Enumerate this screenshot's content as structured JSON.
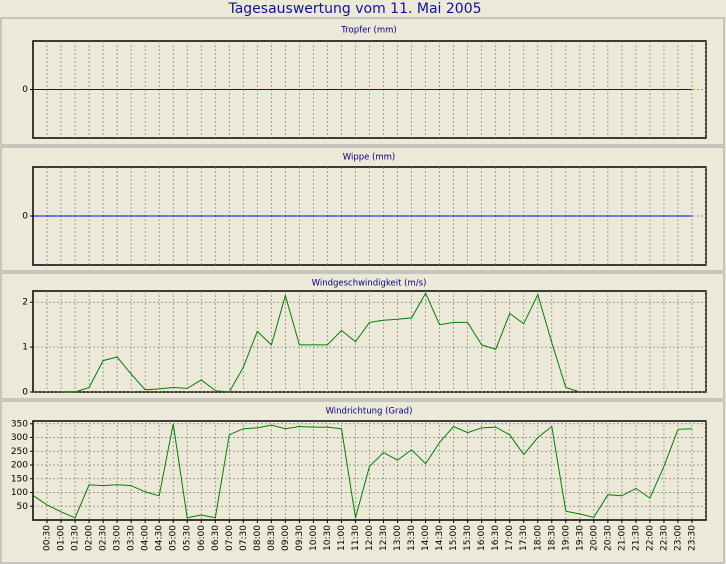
{
  "title": "Tagesauswertung vom 11. Mai 2005",
  "chart_data": [
    {
      "type": "line",
      "title": "Tropfer (mm)",
      "ylim": [
        -1,
        1
      ],
      "yticks": [
        0
      ],
      "grid": true,
      "color": "#0000ff",
      "values": [
        0,
        0,
        0,
        0,
        0,
        0,
        0,
        0,
        0,
        0,
        0,
        0,
        0,
        0,
        0,
        0,
        0,
        0,
        0,
        0,
        0,
        0,
        0,
        0,
        0,
        0,
        0,
        0,
        0,
        0,
        0,
        0,
        0,
        0,
        0,
        0,
        0,
        0,
        0,
        0,
        0,
        0,
        0,
        0,
        0,
        0,
        0,
        0
      ]
    },
    {
      "type": "line",
      "title": "Wippe (mm)",
      "ylim": [
        -1,
        1
      ],
      "yticks": [
        0
      ],
      "grid": true,
      "color": "#0000ff",
      "values": [
        0,
        0,
        0,
        0,
        0,
        0,
        0,
        0,
        0,
        0,
        0,
        0,
        0,
        0,
        0,
        0,
        0,
        0,
        0,
        0,
        0,
        0,
        0,
        0,
        0,
        0,
        0,
        0,
        0,
        0,
        0,
        0,
        0,
        0,
        0,
        0,
        0,
        0,
        0,
        0,
        0,
        0,
        0,
        0,
        0,
        0,
        0,
        0
      ]
    },
    {
      "type": "line",
      "title": "Windgeschwindigkeit (m/s)",
      "ylim": [
        0,
        2.25
      ],
      "yticks": [
        0,
        1,
        2
      ],
      "grid": true,
      "color": "#008000",
      "values": [
        null,
        null,
        0,
        0,
        0.1,
        0.7,
        0.78,
        0.4,
        0.05,
        0.07,
        0.1,
        0.08,
        0.27,
        0.03,
        0,
        0.55,
        1.35,
        1.05,
        2.15,
        1.05,
        1.05,
        1.05,
        1.37,
        1.12,
        1.55,
        1.6,
        1.62,
        1.65,
        2.2,
        1.5,
        1.55,
        1.55,
        1.05,
        0.95,
        1.75,
        1.52,
        2.17,
        1.1,
        0.1,
        0,
        null,
        null,
        null,
        null,
        null,
        null,
        null,
        null
      ]
    },
    {
      "type": "line",
      "title": "Windrichtung (Grad)",
      "ylim": [
        0,
        360
      ],
      "yticks": [
        50,
        100,
        150,
        200,
        250,
        300,
        350
      ],
      "grid": true,
      "color": "#008000",
      "categories": [
        null,
        "00:30",
        "01:00",
        "01:30",
        "02:00",
        "02:30",
        "03:00",
        "03:30",
        "04:00",
        "04:30",
        "05:00",
        "05:30",
        "06:00",
        "06:30",
        "07:00",
        "07:30",
        "08:00",
        "08:30",
        "09:00",
        "09:30",
        "10:00",
        "10:30",
        "11:00",
        "11:30",
        "12:00",
        "12:30",
        "13:00",
        "13:30",
        "14:00",
        "14:30",
        "15:00",
        "15:30",
        "16:00",
        "16:30",
        "17:00",
        "17:30",
        "18:00",
        "18:30",
        "19:00",
        "19:30",
        "20:00",
        "20:30",
        "21:00",
        "21:30",
        "22:00",
        "22:30",
        "23:00",
        "23:30"
      ],
      "values": [
        90,
        55,
        30,
        8,
        128,
        125,
        128,
        125,
        102,
        88,
        350,
        8,
        18,
        8,
        310,
        332,
        335,
        345,
        332,
        340,
        338,
        338,
        332,
        8,
        195,
        245,
        218,
        255,
        205,
        282,
        340,
        318,
        335,
        338,
        310,
        238,
        300,
        340,
        32,
        22,
        10,
        92,
        88,
        115,
        80,
        195,
        330,
        332
      ]
    }
  ]
}
